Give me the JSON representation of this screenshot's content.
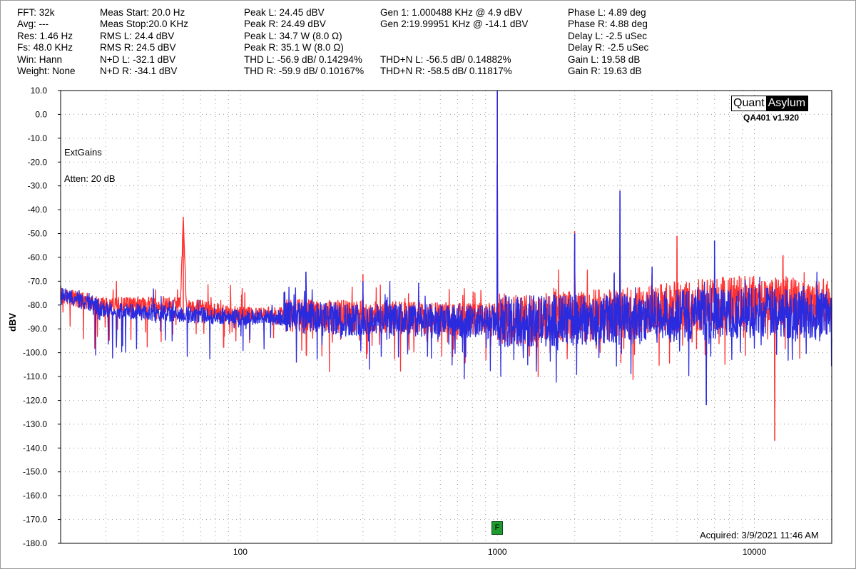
{
  "header": {
    "col1": [
      "FFT: 32k",
      "Avg: ---",
      "Res: 1.46 Hz",
      "Fs: 48.0 KHz",
      "Win: Hann",
      "Weight: None"
    ],
    "col2": [
      "Meas Start: 20.0 Hz",
      "Meas Stop:20.0 KHz",
      "RMS L: 24.4 dBV",
      "RMS R: 24.5 dBV",
      "N+D L: -32.1 dBV",
      "N+D R: -34.1 dBV"
    ],
    "col3": [
      "Peak L: 24.45 dBV",
      "Peak R: 24.49 dBV",
      "Peak L: 34.7 W (8.0 Ω)",
      "Peak R: 35.1 W (8.0 Ω)",
      "THD L: -56.9 dB/ 0.14294%",
      "THD R: -59.9 dB/ 0.10167%"
    ],
    "col4": [
      "Gen 1: 1.000488 KHz @ 4.9  dBV",
      "Gen 2:19.99951 KHz @ -14.1  dBV",
      "THD+N L: -56.5 dB/ 0.14882%",
      "THD+N R: -58.5 dB/ 0.11817%"
    ],
    "col5": [
      "Phase L: 4.89 deg",
      "Phase R: 4.88 deg",
      "Delay L: -2.5 uSec",
      "Delay R: -2.5 uSec",
      "Gain L: 19.58 dB",
      "Gain R: 19.63 dB"
    ]
  },
  "logo": {
    "part1": "Quant",
    "part2": "Asylum",
    "version": "QA401 v1.920"
  },
  "annotations": {
    "ext_gains": "ExtGains",
    "atten": "Atten: 20 dB",
    "acquired": "Acquired: 3/9/2021  11:46 AM",
    "marker": "F"
  },
  "colors": {
    "left": "#ff3030",
    "right": "#2a2adf",
    "grid": "#9a9a9a"
  },
  "chart_data": {
    "type": "line",
    "xscale": "log",
    "xlim": [
      20,
      20000
    ],
    "ylim": [
      -180,
      10
    ],
    "ylabel": "dBV",
    "xlabel": "",
    "yticks": [
      10,
      0,
      -10,
      -20,
      -30,
      -40,
      -50,
      -60,
      -70,
      -80,
      -90,
      -100,
      -110,
      -120,
      -130,
      -140,
      -150,
      -160,
      -170,
      -180
    ],
    "ytick_labels": [
      "10.0",
      "0.0",
      "-10.0",
      "-20.0",
      "-30.0",
      "-40.0",
      "-50.0",
      "-60.0",
      "-70.0",
      "-80.0",
      "-90.0",
      "-100.0",
      "-110.0",
      "-120.0",
      "-130.0",
      "-140.0",
      "-150.0",
      "-160.0",
      "-170.0",
      "-180.0"
    ],
    "xticks": [
      100,
      1000,
      10000
    ],
    "xtick_labels": [
      "100",
      "1000",
      "10000"
    ],
    "grid": true,
    "series": [
      {
        "color": "#ff3030",
        "noise_floor": [
          [
            20,
            -76
          ],
          [
            30,
            -80
          ],
          [
            60,
            -80
          ],
          [
            100,
            -84
          ],
          [
            300,
            -85
          ],
          [
            1000,
            -86
          ],
          [
            3000,
            -84
          ],
          [
            6000,
            -80
          ],
          [
            10000,
            -78
          ],
          [
            20000,
            -80
          ]
        ],
        "peaks": [
          [
            60,
            -43
          ],
          [
            300,
            -67
          ],
          [
            1000,
            10
          ],
          [
            2000,
            -49
          ],
          [
            3000,
            -57
          ],
          [
            4000,
            -67
          ],
          [
            5000,
            -51
          ],
          [
            12000,
            -137
          ]
        ]
      },
      {
        "color": "#2a2adf",
        "noise_floor": [
          [
            20,
            -75
          ],
          [
            30,
            -82
          ],
          [
            60,
            -84
          ],
          [
            100,
            -85
          ],
          [
            300,
            -86
          ],
          [
            1000,
            -87
          ],
          [
            3000,
            -86
          ],
          [
            6000,
            -84
          ],
          [
            10000,
            -83
          ],
          [
            20000,
            -84
          ]
        ],
        "peaks": [
          [
            180,
            -66
          ],
          [
            300,
            -70
          ],
          [
            1000,
            10
          ],
          [
            2000,
            -50
          ],
          [
            3000,
            -32
          ],
          [
            4000,
            -64
          ],
          [
            7000,
            -53
          ],
          [
            6500,
            -122
          ]
        ]
      }
    ]
  }
}
